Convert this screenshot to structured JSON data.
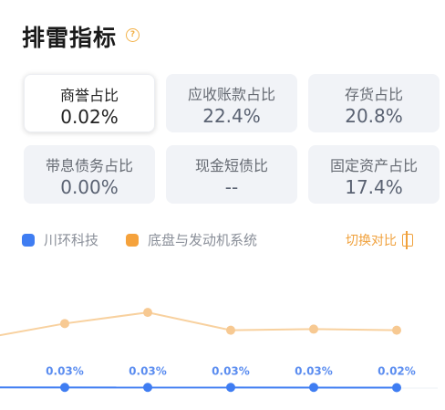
{
  "header": {
    "title": "排雷指标",
    "help_icon": "question-circle-icon"
  },
  "metrics": [
    {
      "label": "商誉占比",
      "value": "0.02%",
      "active": true
    },
    {
      "label": "应收账款占比",
      "value": "22.4%",
      "active": false
    },
    {
      "label": "存货占比",
      "value": "20.8%",
      "active": false
    },
    {
      "label": "带息债务占比",
      "value": "0.00%",
      "active": false
    },
    {
      "label": "现金短债比",
      "value": "--",
      "active": false
    },
    {
      "label": "固定资产占比",
      "value": "17.4%",
      "active": false
    }
  ],
  "legend": [
    {
      "name": "川环科技",
      "color": "#3f7df2"
    },
    {
      "name": "底盘与发动机系统",
      "color": "#f5a23c"
    }
  ],
  "switch_label": "切换对比",
  "colors": {
    "company": "#3f7df2",
    "industry": "#f8d19f",
    "industry_dot": "#f7c992",
    "label": "#5b8df0"
  },
  "chart_data": {
    "type": "line",
    "series": [
      {
        "name": "川环科技",
        "values": [
          null,
          0.03,
          0.03,
          0.03,
          0.03,
          0.02
        ],
        "labels": [
          null,
          "0.03%",
          "0.03%",
          "0.03%",
          "0.03%",
          "0.02%"
        ]
      },
      {
        "name": "底盘与发动机系统",
        "values": [
          2.3,
          2.9,
          3.4,
          2.6,
          2.65,
          2.6
        ]
      }
    ],
    "ylim": [
      0,
      8
    ],
    "grid": false
  }
}
